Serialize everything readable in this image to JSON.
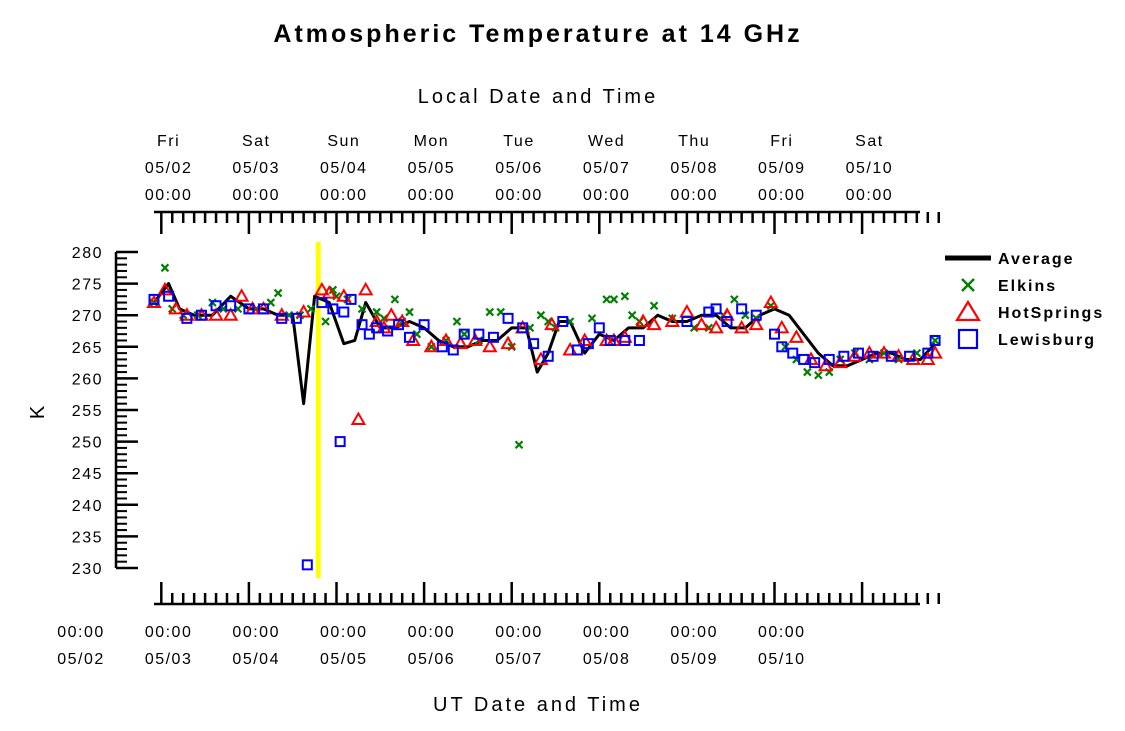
{
  "chart_data": {
    "type": "line",
    "title": "Atmospheric Temperature at 14 GHz",
    "top_axis_title": "Local Date and Time",
    "xlabel": "UT Date and Time",
    "ylabel": "K",
    "ylim": [
      230,
      280
    ],
    "y_ticks": [
      230,
      235,
      240,
      245,
      250,
      255,
      260,
      265,
      270,
      275,
      280
    ],
    "xlim": [
      "05/01 22:00 UT",
      "05/10 21:00 UT"
    ],
    "bottom_ticks": [
      {
        "time": "00:00",
        "date": "05/02"
      },
      {
        "time": "00:00",
        "date": "05/03"
      },
      {
        "time": "00:00",
        "date": "05/04"
      },
      {
        "time": "00:00",
        "date": "05/05"
      },
      {
        "time": "00:00",
        "date": "05/06"
      },
      {
        "time": "00:00",
        "date": "05/07"
      },
      {
        "time": "00:00",
        "date": "05/08"
      },
      {
        "time": "00:00",
        "date": "05/09"
      },
      {
        "time": "00:00",
        "date": "05/10"
      }
    ],
    "top_ticks": [
      {
        "day": "Fri",
        "date": "05/02",
        "time": "00:00"
      },
      {
        "day": "Sat",
        "date": "05/03",
        "time": "00:00"
      },
      {
        "day": "Sun",
        "date": "05/04",
        "time": "00:00"
      },
      {
        "day": "Mon",
        "date": "05/05",
        "time": "00:00"
      },
      {
        "day": "Tue",
        "date": "05/06",
        "time": "00:00"
      },
      {
        "day": "Wed",
        "date": "05/07",
        "time": "00:00"
      },
      {
        "day": "Thu",
        "date": "05/08",
        "time": "00:00"
      },
      {
        "day": "Fri",
        "date": "05/09",
        "time": "00:00"
      },
      {
        "day": "Sat",
        "date": "05/10",
        "time": "00:00"
      }
    ],
    "marker_line": {
      "x": "05/03 19:00 UT",
      "color": "#ffff00"
    },
    "legend_placement": "right",
    "series": [
      {
        "name": "Average",
        "style": "line",
        "color": "#000000",
        "x": [
          "05/01 22:00",
          "05/02 02:00",
          "05/02 05:00",
          "05/02 09:00",
          "05/02 14:00",
          "05/02 19:00",
          "05/03 00:00",
          "05/03 04:00",
          "05/03 08:00",
          "05/03 12:00",
          "05/03 15:00",
          "05/03 18:00",
          "05/03 22:00",
          "05/04 02:00",
          "05/04 05:00",
          "05/04 08:00",
          "05/04 12:00",
          "05/04 16:00",
          "05/04 20:00",
          "05/05 00:00",
          "05/05 04:00",
          "05/05 08:00",
          "05/05 12:00",
          "05/05 16:00",
          "05/05 20:00",
          "05/06 00:00",
          "05/06 04:00",
          "05/06 07:00",
          "05/06 10:00",
          "05/06 13:00",
          "05/06 16:00",
          "05/06 20:00",
          "05/07 00:00",
          "05/07 04:00",
          "05/07 08:00",
          "05/07 12:00",
          "05/07 16:00",
          "05/07 20:00",
          "05/08 00:00",
          "05/08 04:00",
          "05/08 08:00",
          "05/08 12:00",
          "05/08 16:00",
          "05/08 20:00",
          "05/09 00:00",
          "05/09 04:00",
          "05/09 08:00",
          "05/09 12:00",
          "05/09 16:00",
          "05/09 20:00",
          "05/10 00:00",
          "05/10 04:00",
          "05/10 08:00",
          "05/10 12:00",
          "05/10 16:00",
          "05/10 20:00"
        ],
        "values": [
          272,
          275,
          271,
          270,
          270,
          273,
          271,
          271,
          270,
          270,
          256,
          273,
          272,
          265.5,
          266,
          272,
          268,
          268,
          269,
          268,
          266,
          265,
          265,
          266,
          266,
          268,
          268,
          261,
          264,
          269,
          269,
          264,
          267,
          266,
          268,
          268,
          270,
          269,
          269,
          270,
          270,
          268,
          268,
          270,
          271,
          270,
          267,
          264,
          262,
          262,
          263,
          264,
          264,
          263,
          263,
          265.5
        ]
      },
      {
        "name": "Elkins",
        "style": "x-marker",
        "color": "#008000",
        "x": [
          "05/01 22:00",
          "05/02 01:00",
          "05/02 03:00",
          "05/02 06:00",
          "05/02 10:00",
          "05/02 14:00",
          "05/02 17:00",
          "05/02 21:00",
          "05/03 02:00",
          "05/03 06:00",
          "05/03 08:00",
          "05/03 11:00",
          "05/03 14:00",
          "05/03 17:00",
          "05/03 21:00",
          "05/03 23:00",
          "05/04 00:00",
          "05/04 03:00",
          "05/04 07:00",
          "05/04 11:00",
          "05/04 13:00",
          "05/04 16:00",
          "05/04 18:00",
          "05/04 20:00",
          "05/04 22:00",
          "05/05 02:00",
          "05/05 06:00",
          "05/05 09:00",
          "05/05 11:00",
          "05/05 15:00",
          "05/05 18:00",
          "05/05 21:00",
          "05/06 00:00",
          "05/06 02:00",
          "05/06 05:00",
          "05/06 08:00",
          "05/06 10:00",
          "05/06 12:00",
          "05/06 16:00",
          "05/06 22:00",
          "05/07 02:00",
          "05/07 04:00",
          "05/07 07:00",
          "05/07 09:00",
          "05/07 11:00",
          "05/07 15:00",
          "05/07 20:00",
          "05/08 02:00",
          "05/08 06:00",
          "05/08 10:00",
          "05/08 13:00",
          "05/08 16:00",
          "05/08 19:00",
          "05/08 23:00",
          "05/09 03:00",
          "05/09 06:00",
          "05/09 09:00",
          "05/09 12:00",
          "05/09 15:00",
          "05/09 18:00",
          "05/09 22:00",
          "05/10 02:00",
          "05/10 06:00",
          "05/10 10:00",
          "05/10 15:00",
          "05/10 20:00"
        ],
        "values": [
          272,
          277.5,
          271,
          270,
          270,
          272,
          271,
          271,
          271,
          272,
          273.5,
          270,
          270,
          271,
          269,
          274,
          273,
          272.5,
          271,
          270.5,
          269.5,
          272.5,
          269,
          270.5,
          267,
          265,
          266,
          269,
          267,
          266,
          270.5,
          270.5,
          265,
          249.5,
          268,
          270,
          269,
          268,
          269,
          269.5,
          272.5,
          272.5,
          273,
          270,
          269,
          271.5,
          269.5,
          268,
          268,
          270,
          272.5,
          270,
          269.5,
          271.5,
          265,
          263,
          261,
          260.5,
          261,
          263,
          264,
          263,
          264,
          263,
          264,
          266
        ]
      },
      {
        "name": "HotSprings",
        "style": "triangle-marker",
        "color": "#ff0000",
        "x": [
          "05/01 22:00",
          "05/02 01:00",
          "05/02 04:00",
          "05/02 07:00",
          "05/02 11:00",
          "05/02 15:00",
          "05/02 19:00",
          "05/02 22:00",
          "05/03 01:00",
          "05/03 04:00",
          "05/03 09:00",
          "05/03 15:00",
          "05/03 20:00",
          "05/03 22:00",
          "05/04 02:00",
          "05/04 06:00",
          "05/04 08:00",
          "05/04 11:00",
          "05/04 13:00",
          "05/04 15:00",
          "05/04 18:00",
          "05/04 21:00",
          "05/05 02:00",
          "05/05 06:00",
          "05/05 10:00",
          "05/05 14:00",
          "05/05 18:00",
          "05/05 23:00",
          "05/06 03:00",
          "05/06 08:00",
          "05/06 11:00",
          "05/06 16:00",
          "05/06 20:00",
          "05/07 02:00",
          "05/07 04:00",
          "05/07 07:00",
          "05/07 12:00",
          "05/07 15:00",
          "05/07 20:00",
          "05/08 00:00",
          "05/08 04:00",
          "05/08 08:00",
          "05/08 11:00",
          "05/08 15:00",
          "05/08 19:00",
          "05/08 23:00",
          "05/09 02:00",
          "05/09 06:00",
          "05/09 10:00",
          "05/09 14:00",
          "05/09 18:00",
          "05/09 22:00",
          "05/10 02:00",
          "05/10 06:00",
          "05/10 10:00",
          "05/10 14:00",
          "05/10 18:00",
          "05/10 20:00"
        ],
        "values": [
          272,
          274,
          271,
          270,
          270,
          270,
          270,
          273,
          271,
          271,
          270,
          270.5,
          274,
          273.5,
          273,
          253.5,
          274,
          269,
          268,
          270,
          269,
          266,
          265,
          266,
          265.5,
          266,
          265,
          265.5,
          268,
          263,
          268.5,
          264.5,
          266,
          266,
          266,
          266.5,
          269,
          268.5,
          269,
          270.5,
          268.5,
          268,
          270,
          268,
          268.5,
          272,
          268,
          266.5,
          263,
          262,
          262.5,
          263.5,
          264,
          264,
          263.5,
          263,
          263,
          264
        ]
      },
      {
        "name": "Lewisburg",
        "style": "square-marker",
        "color": "#0000ff",
        "x": [
          "05/01 22:00",
          "05/02 02:00",
          "05/02 07:00",
          "05/02 11:00",
          "05/02 15:00",
          "05/02 19:00",
          "05/03 00:00",
          "05/03 04:00",
          "05/03 09:00",
          "05/03 13:00",
          "05/03 16:00",
          "05/03 20:00",
          "05/03 23:00",
          "05/04 01:00",
          "05/04 02:00",
          "05/04 04:00",
          "05/04 07:00",
          "05/04 09:00",
          "05/04 11:00",
          "05/04 14:00",
          "05/04 17:00",
          "05/04 20:00",
          "05/05 00:00",
          "05/05 05:00",
          "05/05 08:00",
          "05/05 11:00",
          "05/05 15:00",
          "05/05 19:00",
          "05/05 23:00",
          "05/06 03:00",
          "05/06 06:00",
          "05/06 10:00",
          "05/06 14:00",
          "05/06 18:00",
          "05/06 21:00",
          "05/07 00:00",
          "05/07 03:00",
          "05/07 07:00",
          "05/07 11:00",
          "05/08 00:00",
          "05/08 06:00",
          "05/08 08:00",
          "05/08 11:00",
          "05/08 15:00",
          "05/08 19:00",
          "05/09 00:00",
          "05/09 02:00",
          "05/09 05:00",
          "05/09 08:00",
          "05/09 11:00",
          "05/09 15:00",
          "05/09 19:00",
          "05/09 23:00",
          "05/10 03:00",
          "05/10 08:00",
          "05/10 13:00",
          "05/10 18:00",
          "05/10 20:00"
        ],
        "values": [
          272.5,
          273,
          269.5,
          270,
          271.5,
          271.5,
          271,
          271,
          269.5,
          269.5,
          230.5,
          272,
          271,
          250,
          270.5,
          272.5,
          268.5,
          267,
          268,
          267.5,
          268.5,
          266.5,
          268.5,
          265,
          264.5,
          267,
          267,
          266.5,
          269.5,
          268,
          265.5,
          263.5,
          269,
          264.5,
          265.5,
          268,
          266,
          266,
          266,
          269,
          270.5,
          271,
          269,
          271,
          270,
          267,
          265,
          264,
          263,
          262.5,
          263,
          263.5,
          264,
          263.5,
          263.5,
          263.5,
          264,
          266
        ]
      }
    ]
  }
}
